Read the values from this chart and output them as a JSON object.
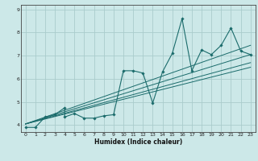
{
  "title": "",
  "xlabel": "Humidex (Indice chaleur)",
  "bg_color": "#cce8e8",
  "line_color": "#1a6b6b",
  "grid_color": "#aacccc",
  "xlim": [
    -0.5,
    23.5
  ],
  "ylim": [
    3.7,
    9.2
  ],
  "xticks": [
    0,
    1,
    2,
    3,
    4,
    5,
    6,
    7,
    8,
    9,
    10,
    11,
    12,
    13,
    14,
    15,
    16,
    17,
    18,
    19,
    20,
    21,
    22,
    23
  ],
  "yticks": [
    4,
    5,
    6,
    7,
    8,
    9
  ],
  "line1_x": [
    0,
    1,
    2,
    3,
    4,
    4,
    5,
    6,
    7,
    8,
    9,
    10,
    11,
    12,
    13,
    14,
    15,
    16,
    17,
    18,
    19,
    20,
    21,
    22,
    23
  ],
  "line1_y": [
    3.9,
    3.9,
    4.35,
    4.45,
    4.75,
    4.35,
    4.5,
    4.3,
    4.3,
    4.4,
    4.45,
    6.35,
    6.35,
    6.25,
    4.95,
    6.3,
    7.1,
    8.6,
    6.35,
    7.25,
    7.05,
    7.45,
    8.2,
    7.2,
    7.05
  ],
  "line2_x": [
    0,
    23
  ],
  "line2_y": [
    4.05,
    7.45
  ],
  "line3_x": [
    0,
    23
  ],
  "line3_y": [
    4.05,
    7.05
  ],
  "line4_x": [
    0,
    23
  ],
  "line4_y": [
    4.05,
    6.7
  ],
  "line5_x": [
    0,
    23
  ],
  "line5_y": [
    4.05,
    6.5
  ]
}
